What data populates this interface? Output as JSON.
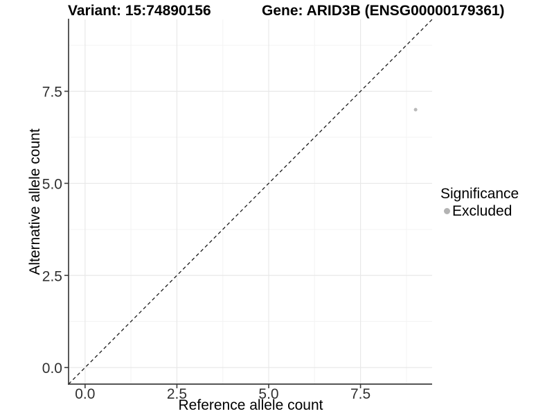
{
  "chart_data": {
    "type": "scatter",
    "title_parts": {
      "variant": "Variant: 15:74890156",
      "gene": "Gene: ARID3B (ENSG00000179361)"
    },
    "xlabel": "Reference allele count",
    "ylabel": "Alternative allele count",
    "xlim": [
      -0.45,
      9.45
    ],
    "ylim": [
      -0.45,
      9.45
    ],
    "xticks": {
      "values": [
        0,
        2.5,
        5,
        7.5
      ],
      "labels": [
        "0.0",
        "2.5",
        "5.0",
        "7.5"
      ]
    },
    "yticks": {
      "values": [
        0,
        2.5,
        5,
        7.5
      ],
      "labels": [
        "0.0",
        "2.5",
        "5.0",
        "7.5"
      ]
    },
    "minor_xticks": [
      1.25,
      3.75,
      6.25,
      8.75
    ],
    "minor_yticks": [
      1.25,
      3.75,
      6.25,
      8.75
    ],
    "points": [
      {
        "x": 9,
        "y": 7,
        "series": "Excluded"
      }
    ],
    "series": [
      {
        "name": "Excluded",
        "color": "#b9b9b9"
      }
    ],
    "reference_line": {
      "type": "identity",
      "slope": 1,
      "intercept": 0,
      "style": "dashed",
      "color": "#1a1a1a"
    },
    "legend": {
      "title": "Significance",
      "position": "right",
      "items": [
        {
          "label": "Excluded",
          "color": "#b3b3b3",
          "marker": "circle"
        }
      ]
    },
    "grid": {
      "major": true,
      "minor": true
    },
    "colors": {
      "major_grid": "#e8e8e8",
      "minor_grid": "#f3f3f3",
      "axis_line": "#3c3c3c",
      "tick_text": "#303030",
      "point": "#b9b9b9"
    }
  }
}
